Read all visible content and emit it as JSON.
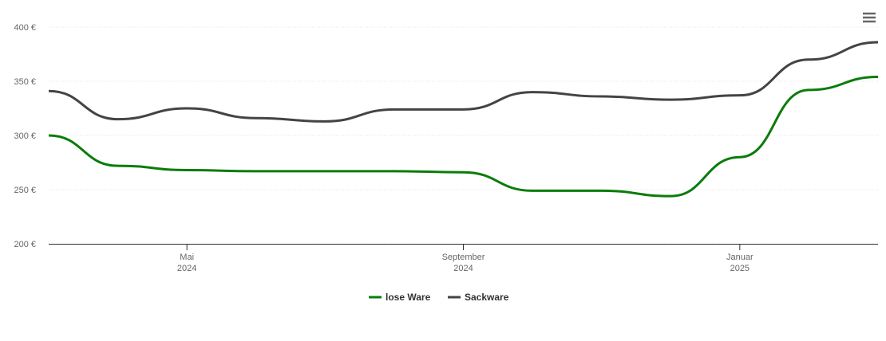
{
  "chart_data": {
    "type": "line",
    "x": [
      "2024-03",
      "2024-04",
      "2024-05",
      "2024-06",
      "2024-07",
      "2024-08",
      "2024-09",
      "2024-10",
      "2024-11",
      "2024-12",
      "2025-01",
      "2025-02",
      "2025-03"
    ],
    "series": [
      {
        "name": "lose Ware",
        "color": "#0a7c0a",
        "values": [
          300,
          272,
          268,
          267,
          267,
          267,
          266,
          249,
          249,
          244,
          280,
          342,
          354
        ]
      },
      {
        "name": "Sackware",
        "color": "#434348",
        "values": [
          341,
          315,
          325,
          316,
          313,
          324,
          324,
          340,
          336,
          333,
          337,
          370,
          386
        ]
      }
    ],
    "xlim": [
      "2024-03",
      "2025-03"
    ],
    "xticks": [
      {
        "value": "2024-05",
        "label": [
          "Mai",
          "2024"
        ]
      },
      {
        "value": "2024-09",
        "label": [
          "September",
          "2024"
        ]
      },
      {
        "value": "2025-01",
        "label": [
          "Januar",
          "2025"
        ]
      }
    ],
    "ylim": [
      200,
      400
    ],
    "yticks": [
      {
        "value": 200,
        "label": "200 €"
      },
      {
        "value": 250,
        "label": "250 €"
      },
      {
        "value": 300,
        "label": "300 €"
      },
      {
        "value": 350,
        "label": "350 €"
      },
      {
        "value": 400,
        "label": "400 €"
      }
    ],
    "grid": true,
    "legend": "bottom"
  }
}
